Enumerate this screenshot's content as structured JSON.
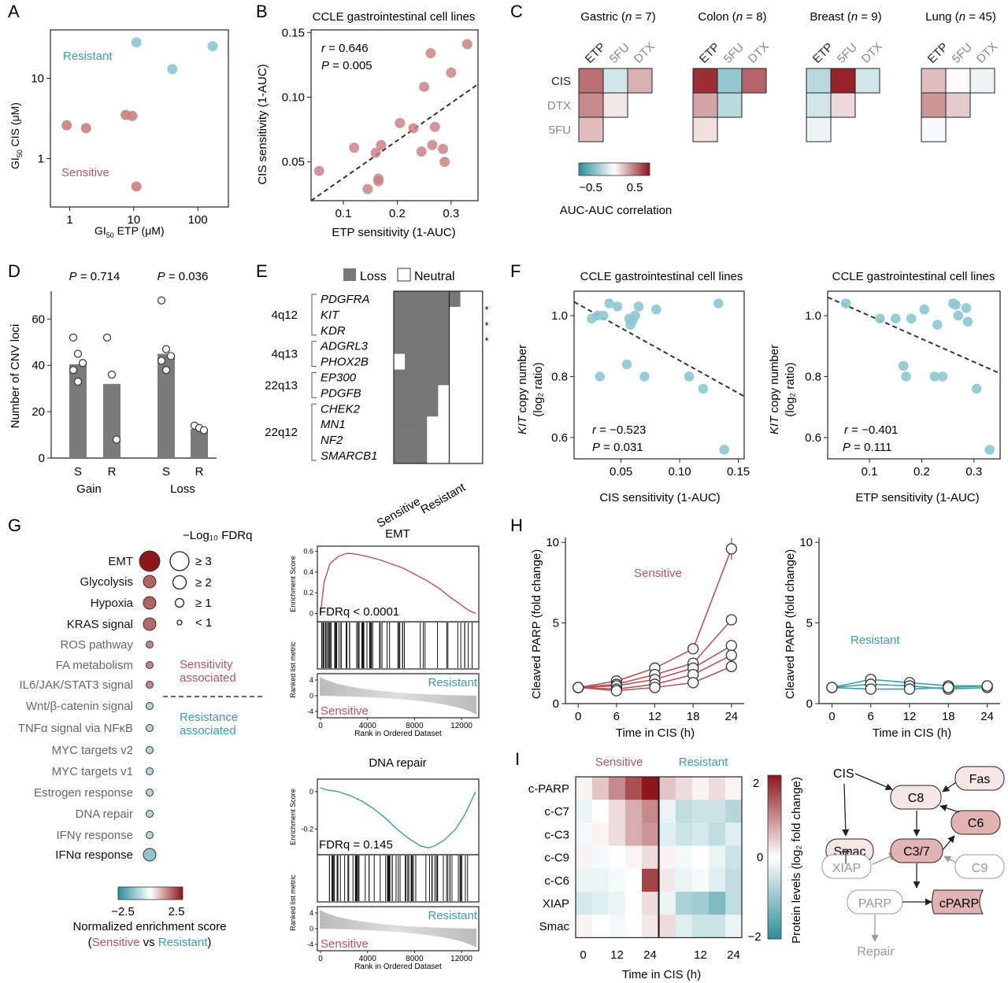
{
  "colors": {
    "sens": "#b5555a",
    "res": "#3a9cad",
    "dot_sens": "#c97f81",
    "dot_res": "#8cc8d3",
    "bar": "#7a7a7a",
    "grid_loss": "#777777",
    "grey": "#888888",
    "dark": "#222222"
  },
  "panelA": {
    "label": "A",
    "xlabel": "GI",
    "xlabel_sub": "50",
    "xlabel_rest": " ETP (μM)",
    "ylabel": "GI",
    "ylabel_sub": "50",
    "ylabel_rest": " CIS (μM)",
    "xticks": [
      "1",
      "10",
      "100"
    ],
    "yticks": [
      "1",
      "10"
    ],
    "resistant_label": "Resistant",
    "sensitive_label": "Sensitive",
    "chart_data": {
      "type": "scatter",
      "xscale": "log",
      "yscale": "log",
      "xlim": [
        0.5,
        300
      ],
      "ylim": [
        0.25,
        40
      ],
      "series": [
        {
          "name": "Resistant",
          "x": [
            11,
            40,
            170
          ],
          "y": [
            28,
            13,
            25
          ]
        },
        {
          "name": "Sensitive",
          "x": [
            0.9,
            1.8,
            7.5,
            9.5,
            11
          ],
          "y": [
            2.6,
            2.4,
            3.5,
            3.4,
            0.45
          ]
        }
      ]
    }
  },
  "panelB": {
    "label": "B",
    "title": "CCLE gastrointestinal cell lines",
    "xlabel": "ETP sensitivity (1-AUC)",
    "ylabel": "CIS sensitivity (1-AUC)",
    "r_label": "r",
    "r_value": " = 0.646",
    "p_label": "P",
    "p_value": " = 0.005",
    "xticks": [
      "0.1",
      "0.2",
      "0.3"
    ],
    "yticks": [
      "0.05",
      "0.10",
      "0.15"
    ],
    "chart_data": {
      "type": "scatter",
      "xlim": [
        0.04,
        0.35
      ],
      "ylim": [
        0.02,
        0.152
      ],
      "x": [
        0.055,
        0.12,
        0.145,
        0.16,
        0.165,
        0.17,
        0.205,
        0.23,
        0.245,
        0.25,
        0.262,
        0.265,
        0.27,
        0.285,
        0.288,
        0.3,
        0.33,
        0.165
      ],
      "y": [
        0.043,
        0.061,
        0.029,
        0.057,
        0.037,
        0.063,
        0.08,
        0.076,
        0.058,
        0.108,
        0.134,
        0.063,
        0.077,
        0.06,
        0.05,
        0.119,
        0.141,
        0.035
      ],
      "fit": {
        "x": [
          0.04,
          0.35
        ],
        "y": [
          0.02,
          0.11
        ]
      }
    }
  },
  "panelC": {
    "label": "C",
    "legend_title": "AUC-AUC correlation",
    "legend_ticks": [
      "−0.5",
      "0.5"
    ],
    "cols": [
      "ETP",
      "5FU",
      "DTX"
    ],
    "rows": [
      "CIS",
      "DTX",
      "5FU"
    ],
    "chart_data": {
      "type": "heatmap",
      "groups": [
        {
          "name": "Gastric",
          "n": "7",
          "values": [
            [
              0.55,
              -0.2,
              0.3
            ],
            [
              0.45,
              0.1,
              null
            ],
            [
              0.25,
              null,
              null
            ]
          ]
        },
        {
          "name": "Colon",
          "n": "8",
          "values": [
            [
              0.8,
              -0.45,
              0.6
            ],
            [
              0.35,
              -0.3,
              null
            ],
            [
              0.12,
              null,
              null
            ]
          ]
        },
        {
          "name": "Breast",
          "n": "9",
          "values": [
            [
              -0.3,
              0.85,
              -0.2
            ],
            [
              -0.2,
              0.15,
              null
            ],
            [
              -0.08,
              null,
              null
            ]
          ]
        },
        {
          "name": "Lung",
          "n": "45",
          "values": [
            [
              0.25,
              0.02,
              -0.08
            ],
            [
              0.4,
              0.2,
              null
            ],
            [
              -0.03,
              null,
              null
            ]
          ]
        }
      ]
    }
  },
  "panelD": {
    "label": "D",
    "ylabel": "Number of CNV loci",
    "p1": " = 0.714",
    "p2": " = 0.036",
    "p_label": "P",
    "xticks": [
      "S",
      "R",
      "S",
      "R"
    ],
    "groups": [
      "Gain",
      "Loss"
    ],
    "yticks": [
      "0",
      "20",
      "40",
      "60"
    ],
    "chart_data": {
      "type": "bar",
      "categories": [
        "Gain S",
        "Gain R",
        "Loss S",
        "Loss R"
      ],
      "values": [
        40.5,
        32,
        45,
        12.5
      ],
      "ylim": [
        0,
        72
      ],
      "points": [
        [
          52,
          45,
          41,
          38,
          33
        ],
        [
          52,
          36,
          8
        ],
        [
          68,
          47,
          44,
          42,
          38
        ],
        [
          14,
          13,
          12
        ]
      ]
    }
  },
  "panelE": {
    "label": "E",
    "legend_loss": "Loss",
    "legend_neutral": "Neutral",
    "loci": [
      "4q12",
      "4q13",
      "22q13",
      "22q12"
    ],
    "genes": [
      "PDGFRA",
      "KIT",
      "KDR",
      "ADGRL3",
      "PHOX2B",
      "EP300",
      "PDGFB",
      "CHEK2",
      "MN1",
      "NF2",
      "SMARCB1"
    ],
    "xlabels": [
      "Sensitive",
      "Resistant"
    ],
    "stars": [
      "*",
      "*",
      "*"
    ],
    "chart_data": {
      "type": "heatmap",
      "columns": [
        "S1",
        "S2",
        "S3",
        "S4",
        "S5",
        "R1",
        "R2",
        "R3"
      ],
      "matrix": [
        [
          1,
          1,
          1,
          1,
          1,
          1,
          0,
          0
        ],
        [
          1,
          1,
          1,
          1,
          1,
          0,
          0,
          0
        ],
        [
          1,
          1,
          1,
          1,
          1,
          0,
          0,
          0
        ],
        [
          1,
          1,
          1,
          1,
          1,
          0,
          0,
          0
        ],
        [
          0,
          1,
          1,
          1,
          1,
          0,
          0,
          0
        ],
        [
          1,
          1,
          1,
          1,
          1,
          0,
          0,
          0
        ],
        [
          1,
          1,
          1,
          1,
          0,
          0,
          0,
          0
        ],
        [
          1,
          1,
          1,
          1,
          0,
          0,
          0,
          0
        ],
        [
          1,
          1,
          1,
          0,
          0,
          0,
          0,
          0
        ],
        [
          1,
          1,
          1,
          0,
          0,
          0,
          0,
          0
        ],
        [
          1,
          1,
          1,
          0,
          0,
          0,
          0,
          0
        ]
      ]
    }
  },
  "panelF": {
    "label": "F",
    "title": "CCLE gastrointestinal cell lines",
    "ylabel_it": "KIT",
    "ylabel_rest": " copy number",
    "ylabel2": "(log₂ ratio)",
    "yticks": [
      "0.6",
      "0.8",
      "1.0"
    ],
    "left": {
      "xlabel": "CIS sensitivity (1-AUC)",
      "xticks": [
        "0.05",
        "0.10",
        "0.15"
      ],
      "r_label": "r",
      "r_value": " = −0.523",
      "p_label": "P",
      "p_value": " = 0.031",
      "chart_data": {
        "type": "scatter",
        "xlim": [
          0.01,
          0.155
        ],
        "ylim": [
          0.53,
          1.08
        ],
        "x": [
          0.025,
          0.03,
          0.032,
          0.035,
          0.04,
          0.047,
          0.055,
          0.057,
          0.058,
          0.06,
          0.062,
          0.065,
          0.07,
          0.08,
          0.108,
          0.12,
          0.133,
          0.138
        ],
        "y": [
          0.99,
          1.0,
          0.8,
          1.0,
          1.04,
          1.03,
          0.84,
          0.99,
          0.97,
          0.985,
          1.0,
          1.03,
          0.8,
          1.02,
          0.8,
          0.76,
          1.04,
          0.56
        ],
        "fit": {
          "x": [
            0.01,
            0.155
          ],
          "y": [
            1.045,
            0.735
          ]
        }
      }
    },
    "right": {
      "xlabel": "ETP sensitivity (1-AUC)",
      "xticks": [
        "0.1",
        "0.2",
        "0.3"
      ],
      "r_label": "r",
      "r_value": " = −0.401",
      "p_label": "P",
      "p_value": " = 0.111",
      "chart_data": {
        "type": "scatter",
        "xlim": [
          0.02,
          0.35
        ],
        "ylim": [
          0.53,
          1.08
        ],
        "x": [
          0.055,
          0.12,
          0.15,
          0.165,
          0.17,
          0.18,
          0.205,
          0.225,
          0.23,
          0.24,
          0.26,
          0.265,
          0.27,
          0.285,
          0.288,
          0.305,
          0.33
        ],
        "y": [
          1.04,
          0.99,
          0.99,
          0.835,
          0.8,
          0.99,
          1.02,
          0.8,
          0.97,
          0.8,
          1.04,
          1.035,
          1.0,
          1.025,
          0.98,
          0.76,
          0.56
        ],
        "fit": {
          "x": [
            0.02,
            0.35
          ],
          "y": [
            1.06,
            0.81
          ]
        }
      }
    }
  },
  "panelG": {
    "label": "G",
    "size_title": "−Log₁₀ FDRq",
    "size_labels": [
      "≥ 3",
      "≥ 2",
      "≥ 1",
      "< 1"
    ],
    "sens_assoc": [
      "Sensitivity",
      "associated"
    ],
    "res_assoc": [
      "Resistance",
      "associated"
    ],
    "pathways": [
      "EMT",
      "Glycolysis",
      "Hypoxia",
      "KRAS signal",
      "ROS pathway",
      "FA metabolism",
      "IL6/JAK/STAT3 signal",
      "Wnt/β-catenin signal",
      "TNFα signal via NFκB",
      "MYC targets v2",
      "MYC targets v1",
      "Estrogen response",
      "DNA repair",
      "IFNγ response",
      "IFNα response"
    ],
    "nes": [
      2.5,
      1.7,
      1.7,
      1.6,
      1.3,
      1.3,
      1.3,
      -0.9,
      -0.9,
      -0.9,
      -0.9,
      -0.9,
      -0.9,
      -0.9,
      -1.3
    ],
    "sizes": [
      3,
      2,
      2,
      2,
      1,
      1,
      1,
      1,
      1,
      1,
      1,
      1,
      1,
      1,
      2
    ],
    "bold": [
      true,
      true,
      true,
      true,
      false,
      false,
      false,
      false,
      false,
      false,
      false,
      false,
      false,
      false,
      true
    ],
    "legend_title": "Normalized enrichment score",
    "legend_ticks": [
      "−2.5",
      "2.5"
    ],
    "legend_sub_l": "(",
    "legend_sub_sens": "Sensitive",
    "legend_sub_vs": " vs ",
    "legend_sub_res": "Resistant",
    "legend_sub_r": ")",
    "gsea": [
      {
        "title": "EMT",
        "es_label": "Enrichment Score",
        "rank_label": "Ranked list metric",
        "xlabel": "Rank in Ordered Dataset",
        "fdr": "FDRq < 0.0001",
        "es_ticks": [
          "0",
          "0.2",
          "0.4",
          "0.6"
        ],
        "rank_ticks": [
          "4",
          "0",
          "-4"
        ],
        "x_ticks": [
          "0",
          "4000",
          "8000",
          "12000"
        ],
        "res": "Resistant",
        "sens": "Sensitive",
        "chart_data": {
          "type": "line",
          "xlim": [
            0,
            13200
          ],
          "ylim": [
            -0.05,
            0.62
          ],
          "x": [
            0,
            300,
            800,
            1500,
            2200,
            2600,
            3200,
            4000,
            5000,
            6000,
            7000,
            8000,
            9000,
            10000,
            11000,
            12000,
            12600,
            13200
          ],
          "y": [
            0,
            0.3,
            0.48,
            0.55,
            0.58,
            0.58,
            0.57,
            0.55,
            0.52,
            0.48,
            0.44,
            0.38,
            0.32,
            0.25,
            0.16,
            0.08,
            0.03,
            0
          ]
        }
      },
      {
        "title": "DNA repair",
        "es_label": "Enrichment Score",
        "rank_label": "Ranked list metric",
        "xlabel": "Rank in Ordered Dataset",
        "fdr": "FDRq = 0.145",
        "es_ticks": [
          "0",
          "-0.2"
        ],
        "rank_ticks": [
          "4",
          "0",
          "-4"
        ],
        "x_ticks": [
          "0",
          "4000",
          "8000",
          "12000"
        ],
        "res": "Resistant",
        "sens": "Sensitive",
        "chart_data": {
          "type": "line",
          "xlim": [
            0,
            13200
          ],
          "ylim": [
            -0.32,
            0.05
          ],
          "x": [
            0,
            500,
            1500,
            2500,
            3500,
            4500,
            5500,
            6500,
            7500,
            8500,
            9200,
            9700,
            10500,
            11500,
            12300,
            12900,
            13200
          ],
          "y": [
            0.02,
            0.01,
            0,
            -0.02,
            -0.05,
            -0.09,
            -0.14,
            -0.2,
            -0.25,
            -0.29,
            -0.3,
            -0.29,
            -0.26,
            -0.2,
            -0.12,
            -0.04,
            0
          ]
        }
      }
    ]
  },
  "panelH": {
    "label": "H",
    "ylabel": "Cleaved PARP (fold change)",
    "ylabel2": "Cleaved PARP (fold  change)",
    "xlabel": "Time in CIS (h)",
    "xticks": [
      "0",
      "6",
      "12",
      "18",
      "24"
    ],
    "yticks": [
      "0",
      "5",
      "10"
    ],
    "sens": "Sensitive",
    "res": "Resistant",
    "left": {
      "chart_data": {
        "type": "line",
        "x": [
          0,
          6,
          12,
          18,
          24
        ],
        "ylim": [
          0,
          10.3
        ],
        "series": [
          {
            "values": [
              1,
              1.4,
              2.2,
              3.4,
              9.6
            ]
          },
          {
            "values": [
              1,
              1.2,
              1.8,
              2.5,
              5.2
            ]
          },
          {
            "values": [
              1,
              1.1,
              1.5,
              2.2,
              3.6
            ]
          },
          {
            "values": [
              1,
              0.9,
              1.2,
              1.8,
              3.0
            ]
          },
          {
            "values": [
              1,
              0.8,
              1.0,
              1.3,
              2.3
            ]
          }
        ]
      }
    },
    "right": {
      "chart_data": {
        "type": "line",
        "x": [
          0,
          6,
          12,
          18,
          24
        ],
        "ylim": [
          0,
          10.3
        ],
        "series": [
          {
            "values": [
              1,
              1.5,
              1.3,
              1.1,
              1.1
            ]
          },
          {
            "values": [
              1,
              1.2,
              1.1,
              0.9,
              1.0
            ]
          },
          {
            "values": [
              1,
              0.9,
              0.9,
              1.0,
              1.1
            ]
          }
        ]
      }
    }
  },
  "panelI": {
    "label": "I",
    "sens": "Sensitive",
    "res": "Resistant",
    "xlabel": "Time in CIS (h)",
    "xticks": [
      "0",
      "12",
      "24",
      "12",
      "24"
    ],
    "rows": [
      "c-PARP",
      "c-C7",
      "c-C3",
      "c-C9",
      "c-C6",
      "XIAP",
      "Smac"
    ],
    "cbar_label": "Protein levels (log₂ fold change)",
    "cbar_ticks": [
      "2",
      "0",
      "−2"
    ],
    "chart_data": {
      "type": "heatmap",
      "sensitive": [
        [
          0.1,
          0.5,
          1.0,
          1.5,
          2.0
        ],
        [
          -0.2,
          0.0,
          0.3,
          0.7,
          1.0
        ],
        [
          -0.1,
          0.1,
          0.3,
          0.7,
          0.9
        ],
        [
          0.1,
          -0.1,
          0.0,
          0.1,
          0.3
        ],
        [
          -0.2,
          -0.2,
          -0.1,
          0.0,
          1.6
        ],
        [
          -0.4,
          -0.3,
          -0.2,
          0.0,
          0.3
        ],
        [
          0.1,
          0.0,
          -0.1,
          0.0,
          0.2
        ]
      ],
      "resistant": [
        [
          0.5,
          0.3,
          0.1,
          0.3,
          0.1
        ],
        [
          -0.2,
          -0.6,
          -0.5,
          -0.5,
          -0.7
        ],
        [
          -0.3,
          -0.5,
          -0.4,
          -0.6,
          -0.3
        ],
        [
          0.1,
          -0.1,
          0.0,
          -0.2,
          -0.5
        ],
        [
          0.2,
          -0.2,
          -0.1,
          -0.3,
          -0.6
        ],
        [
          -0.2,
          -0.8,
          -0.9,
          -1.2,
          -0.6
        ],
        [
          0.3,
          -0.3,
          -0.5,
          -0.5,
          -0.2
        ]
      ]
    },
    "diagram": {
      "cis": "CIS",
      "c8": "C8",
      "fas": "Fas",
      "smac": "Smac",
      "c6": "C6",
      "c37": "C3/7",
      "xiap": "XIAP",
      "c9": "C9",
      "parp": "PARP",
      "cparp": "cPARP",
      "repair": "Repair"
    }
  }
}
